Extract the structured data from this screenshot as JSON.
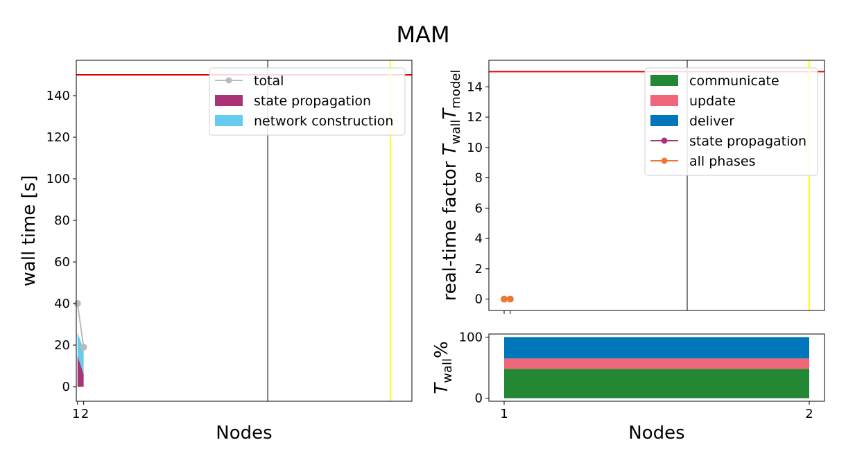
{
  "figure": {
    "title": "MAM"
  },
  "colors": {
    "total": "#bbbbbb",
    "state_propagation": "#aa3377",
    "network_construction": "#66ccee",
    "communicate": "#228833",
    "update": "#ee6677",
    "deliver": "#0077bb",
    "all_phases": "#ee7733",
    "ref_red": "#e00000",
    "ref_gray": "#808080",
    "ref_yellow": "#ffff00"
  },
  "chart_data": [
    {
      "type": "area",
      "id": "walltime",
      "xlabel": "Nodes",
      "ylabel": "wall time [s]",
      "xlim": [
        0.8,
        55.5
      ],
      "ylim": [
        -7,
        157
      ],
      "xticks": [
        {
          "v": 1,
          "label": "1"
        },
        {
          "v": 2,
          "label": "2"
        }
      ],
      "yticks": [
        0,
        20,
        40,
        60,
        80,
        100,
        120,
        140
      ],
      "nodes": [
        1,
        2
      ],
      "total": [
        40,
        19
      ],
      "stacked": [
        {
          "name": "state propagation",
          "key": "state_propagation",
          "values": [
            15,
            6
          ]
        },
        {
          "name": "network construction",
          "key": "network_construction",
          "values": [
            11,
            12
          ]
        }
      ],
      "ref_lines": [
        {
          "orient": "h",
          "value": 150,
          "color_key": "ref_red"
        },
        {
          "orient": "v",
          "value": 32,
          "color_key": "ref_gray"
        },
        {
          "orient": "v",
          "value": 52,
          "color_key": "ref_yellow"
        }
      ],
      "legend": {
        "position": "top-right",
        "items": [
          {
            "label": "total",
            "kind": "line",
            "key": "total"
          },
          {
            "label": "state propagation",
            "kind": "patch",
            "key": "state_propagation"
          },
          {
            "label": "network construction",
            "kind": "patch",
            "key": "network_construction"
          }
        ]
      }
    },
    {
      "type": "line",
      "id": "rtf",
      "xlabel": "",
      "ylabel": "real-time factor T_wall/T_model",
      "xlim": [
        0.95,
        2.05
      ],
      "ylim": [
        -0.75,
        15.75
      ],
      "xticks": [
        {
          "v": 1,
          "label": ""
        },
        {
          "v": 1.02,
          "label": ""
        }
      ],
      "yticks": [
        0,
        2,
        4,
        6,
        8,
        10,
        12,
        14
      ],
      "points": [
        {
          "x": 1,
          "y": 0
        },
        {
          "x": 1.02,
          "y": 0
        }
      ],
      "ref_lines": [
        {
          "orient": "h",
          "value": 15,
          "color_key": "ref_red"
        },
        {
          "orient": "v",
          "value": 1.6,
          "color_key": "ref_gray"
        },
        {
          "orient": "v",
          "value": 2.0,
          "color_key": "ref_yellow"
        }
      ],
      "legend": {
        "position": "top-right",
        "items": [
          {
            "label": "communicate",
            "kind": "patch",
            "key": "communicate"
          },
          {
            "label": "update",
            "kind": "patch",
            "key": "update"
          },
          {
            "label": "deliver",
            "kind": "patch",
            "key": "deliver"
          },
          {
            "label": "state propagation",
            "kind": "line",
            "key": "state_propagation"
          },
          {
            "label": "all phases",
            "kind": "line",
            "key": "all_phases"
          }
        ]
      }
    },
    {
      "type": "area",
      "id": "percent",
      "xlabel": "Nodes",
      "ylabel": "T_wall %",
      "xlim": [
        0.95,
        2.05
      ],
      "ylim": [
        -5,
        105
      ],
      "xticks": [
        {
          "v": 1,
          "label": "1"
        },
        {
          "v": 2,
          "label": "2"
        }
      ],
      "yticks": [
        0,
        100
      ],
      "nodes": [
        1,
        2
      ],
      "stacked": [
        {
          "name": "communicate",
          "key": "communicate",
          "values": [
            48,
            48
          ]
        },
        {
          "name": "update",
          "key": "update",
          "values": [
            17,
            17
          ]
        },
        {
          "name": "deliver",
          "key": "deliver",
          "values": [
            35,
            35
          ]
        }
      ]
    }
  ]
}
